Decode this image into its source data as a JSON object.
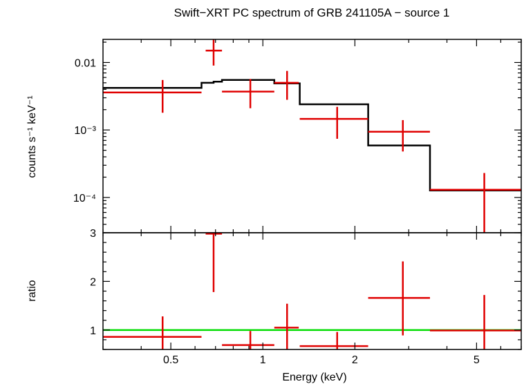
{
  "chart_data": [
    {
      "type": "scatter",
      "panel": "spectrum",
      "title": "Swift−XRT PC spectrum of GRB 241105A − source 1",
      "ylabel": "counts s⁻¹ keV⁻¹",
      "yscale": "log",
      "xscale": "log",
      "xlim": [
        0.3,
        7.0
      ],
      "ylim": [
        3e-05,
        0.022
      ],
      "yticks": [
        {
          "value": 0.01,
          "label": "0.01"
        },
        {
          "value": 0.001,
          "label": "10⁻³"
        },
        {
          "value": 0.0001,
          "label": "10⁻⁴"
        }
      ],
      "series": [
        {
          "type": "errorbar",
          "color": "#e00000",
          "points": [
            {
              "x": 0.47,
              "xlo": 0.3,
              "xhi": 0.63,
              "y": 0.0036,
              "ylo": 0.0018,
              "yhi": 0.0055
            },
            {
              "x": 0.69,
              "xlo": 0.65,
              "xhi": 0.735,
              "y": 0.015,
              "ylo": 0.009,
              "yhi": 0.022
            },
            {
              "x": 0.91,
              "xlo": 0.735,
              "xhi": 1.09,
              "y": 0.0037,
              "ylo": 0.0021,
              "yhi": 0.0057
            },
            {
              "x": 1.2,
              "xlo": 1.09,
              "xhi": 1.31,
              "y": 0.005,
              "ylo": 0.0028,
              "yhi": 0.0075
            },
            {
              "x": 1.75,
              "xlo": 1.32,
              "xhi": 2.21,
              "y": 0.00146,
              "ylo": 0.00074,
              "yhi": 0.0022
            },
            {
              "x": 2.87,
              "xlo": 2.21,
              "xhi": 3.52,
              "y": 0.00094,
              "ylo": 0.00048,
              "yhi": 0.0014
            },
            {
              "x": 5.3,
              "xlo": 3.52,
              "xhi": 7.0,
              "y": 0.00013,
              "ylo": 3e-05,
              "yhi": 0.00023
            }
          ]
        },
        {
          "type": "step",
          "color": "#000000",
          "steps": [
            {
              "x0": 0.3,
              "x1": 0.63,
              "y": 0.0042
            },
            {
              "x0": 0.63,
              "x1": 0.69,
              "y": 0.005
            },
            {
              "x0": 0.69,
              "x1": 0.735,
              "y": 0.0052
            },
            {
              "x0": 0.735,
              "x1": 1.09,
              "y": 0.0055
            },
            {
              "x0": 1.09,
              "x1": 1.32,
              "y": 0.0049
            },
            {
              "x0": 1.32,
              "x1": 2.21,
              "y": 0.0024
            },
            {
              "x0": 2.21,
              "x1": 3.52,
              "y": 0.00059
            },
            {
              "x0": 3.52,
              "x1": 7.0,
              "y": 0.000127
            }
          ]
        }
      ]
    },
    {
      "type": "scatter",
      "panel": "ratio",
      "xlabel": "Energy (keV)",
      "ylabel": "ratio",
      "xscale": "log",
      "yscale": "linear",
      "xlim": [
        0.3,
        7.0
      ],
      "ylim": [
        0.6,
        3.0
      ],
      "xticks": [
        {
          "value": 0.5,
          "label": "0.5"
        },
        {
          "value": 1,
          "label": "1"
        },
        {
          "value": 2,
          "label": "2"
        },
        {
          "value": 5,
          "label": "5"
        }
      ],
      "yticks": [
        {
          "value": 1,
          "label": "1"
        },
        {
          "value": 2,
          "label": "2"
        },
        {
          "value": 3,
          "label": "3"
        }
      ],
      "reference_line": {
        "y": 1,
        "color": "#00dd00"
      },
      "series": [
        {
          "type": "errorbar",
          "color": "#e00000",
          "points": [
            {
              "x": 0.47,
              "xlo": 0.3,
              "xhi": 0.63,
              "y": 0.86,
              "ylo": 0.6,
              "yhi": 1.28
            },
            {
              "x": 0.69,
              "xlo": 0.65,
              "xhi": 0.735,
              "y": 2.98,
              "ylo": 1.78,
              "yhi": 3.0
            },
            {
              "x": 0.91,
              "xlo": 0.735,
              "xhi": 1.09,
              "y": 0.69,
              "ylo": 0.6,
              "yhi": 0.98
            },
            {
              "x": 1.2,
              "xlo": 1.09,
              "xhi": 1.31,
              "y": 1.05,
              "ylo": 0.6,
              "yhi": 1.54
            },
            {
              "x": 1.75,
              "xlo": 1.32,
              "xhi": 2.21,
              "y": 0.67,
              "ylo": 0.6,
              "yhi": 0.96
            },
            {
              "x": 2.87,
              "xlo": 2.21,
              "xhi": 3.52,
              "y": 1.66,
              "ylo": 0.89,
              "yhi": 2.41
            },
            {
              "x": 5.3,
              "xlo": 3.52,
              "xhi": 7.0,
              "y": 0.99,
              "ylo": 0.6,
              "yhi": 1.72
            }
          ]
        }
      ]
    }
  ]
}
